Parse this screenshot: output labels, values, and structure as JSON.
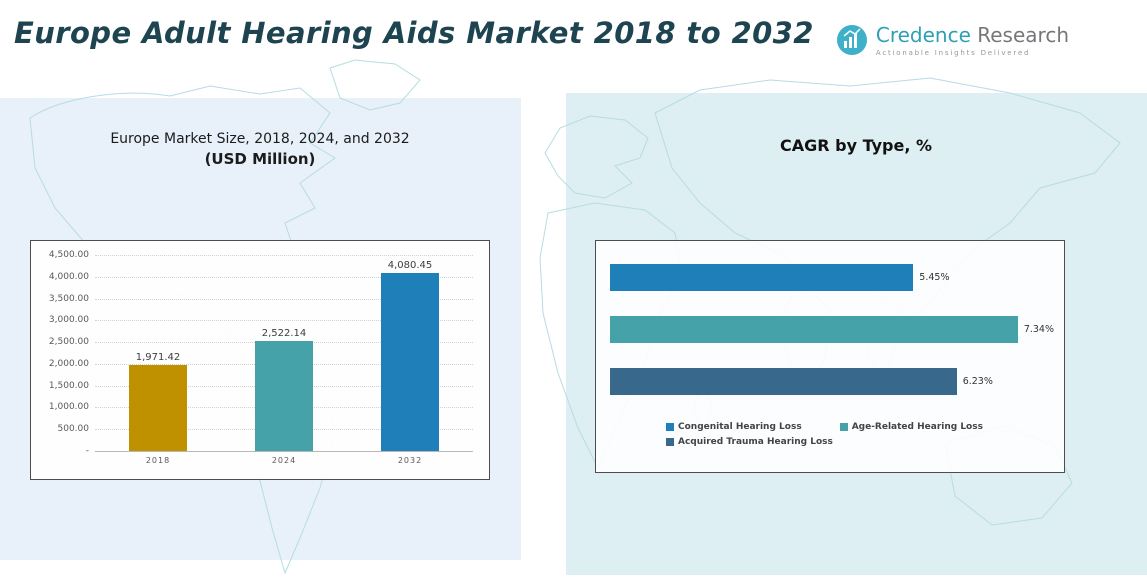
{
  "header": {
    "title": "Europe Adult Hearing Aids Market 2018 to 2032",
    "logo": {
      "brand_primary": "Credence",
      "brand_secondary": "Research",
      "tagline": "Actionable Insights Delivered"
    }
  },
  "left_panel": {
    "chart_title_line1": "Europe Market Size, 2018, 2024, and 2032",
    "chart_title_line2": "(USD Million)"
  },
  "right_panel": {
    "chart_title": "CAGR by Type, %"
  },
  "colors": {
    "accent_gold": "#BF9000",
    "accent_teal": "#45A2A8",
    "accent_blue": "#1F7FB8",
    "accent_steel": "#38688C",
    "panel_left_bg": "#e8f0f9",
    "panel_right_bg": "#ddeff2",
    "map_line": "#b7dce2",
    "title_color": "#1d4450"
  },
  "chart_data": [
    {
      "type": "bar",
      "orientation": "vertical",
      "title": "Europe Market Size, 2018, 2024, and 2032 (USD Million)",
      "categories": [
        "2018",
        "2024",
        "2032"
      ],
      "values": [
        1971.42,
        2522.14,
        4080.45
      ],
      "data_labels": [
        "1,971.42",
        "2,522.14",
        "4,080.45"
      ],
      "bar_colors": [
        "#BF9000",
        "#45A2A8",
        "#1F7FB8"
      ],
      "ylim": [
        0,
        4500
      ],
      "ytick_labels": [
        "4,500.00",
        "4,000.00",
        "3,500.00",
        "3,000.00",
        "2,500.00",
        "2,000.00",
        "1,500.00",
        "1,000.00",
        "500.00",
        "-"
      ],
      "grid": true,
      "legend": false
    },
    {
      "type": "bar",
      "orientation": "horizontal",
      "title": "CAGR by Type, %",
      "categories": [
        "Congenital Hearing Loss",
        "Age-Related Hearing Loss",
        "Acquired Trauma Hearing Loss"
      ],
      "values": [
        5.45,
        7.34,
        6.23
      ],
      "data_labels": [
        "5.45%",
        "7.34%",
        "6.23%"
      ],
      "bar_colors": [
        "#1F7FB8",
        "#45A2A8",
        "#38688C"
      ],
      "xlim": [
        0,
        7.34
      ],
      "grid": false,
      "legend_position": "bottom",
      "legend_rows": [
        [
          0,
          1
        ],
        [
          2
        ]
      ]
    }
  ]
}
